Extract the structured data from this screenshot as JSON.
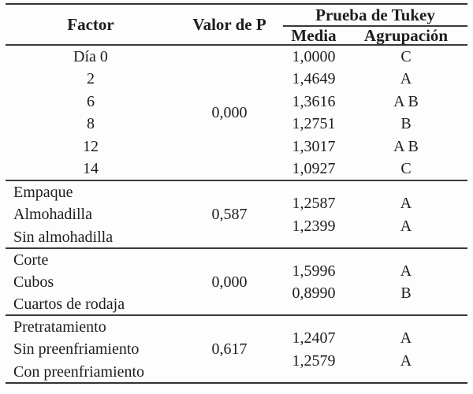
{
  "colors": {
    "text": "#1d1d1d",
    "rule_line": "#3a3a3a",
    "background": "#fdfdfd"
  },
  "table": {
    "header": {
      "factor": "Factor",
      "valor_p": "Valor de P",
      "tukey": "Prueba de Tukey",
      "media": "Media",
      "agrupacion": "Agrupación"
    },
    "sections": [
      {
        "rows": [
          "Día 0",
          "2",
          "6",
          "8",
          "12",
          "14"
        ],
        "p": "0,000",
        "values": [
          {
            "media": "1,0000",
            "agrup": "C"
          },
          {
            "media": "1,4649",
            "agrup": "A"
          },
          {
            "media": "1,3616",
            "agrup": "A B"
          },
          {
            "media": "1,2751",
            "agrup": "B"
          },
          {
            "media": "1,3017",
            "agrup": "A B"
          },
          {
            "media": "1,0927",
            "agrup": "C"
          }
        ]
      },
      {
        "rows": [
          "Empaque",
          "Almohadilla",
          "Sin almohadilla"
        ],
        "p": "0,587",
        "values": [
          {
            "media": "1,2587",
            "agrup": "A"
          },
          {
            "media": "1,2399",
            "agrup": "A"
          }
        ]
      },
      {
        "rows": [
          "Corte",
          "Cubos",
          "Cuartos de rodaja"
        ],
        "p": "0,000",
        "values": [
          {
            "media": "1,5996",
            "agrup": "A"
          },
          {
            "media": "0,8990",
            "agrup": "B"
          }
        ]
      },
      {
        "rows": [
          "Pretratamiento",
          "Sin preenfriamiento",
          "Con preenfriamiento"
        ],
        "p": "0,617",
        "values": [
          {
            "media": "1,2407",
            "agrup": "A"
          },
          {
            "media": "1,2579",
            "agrup": "A"
          }
        ]
      }
    ]
  }
}
